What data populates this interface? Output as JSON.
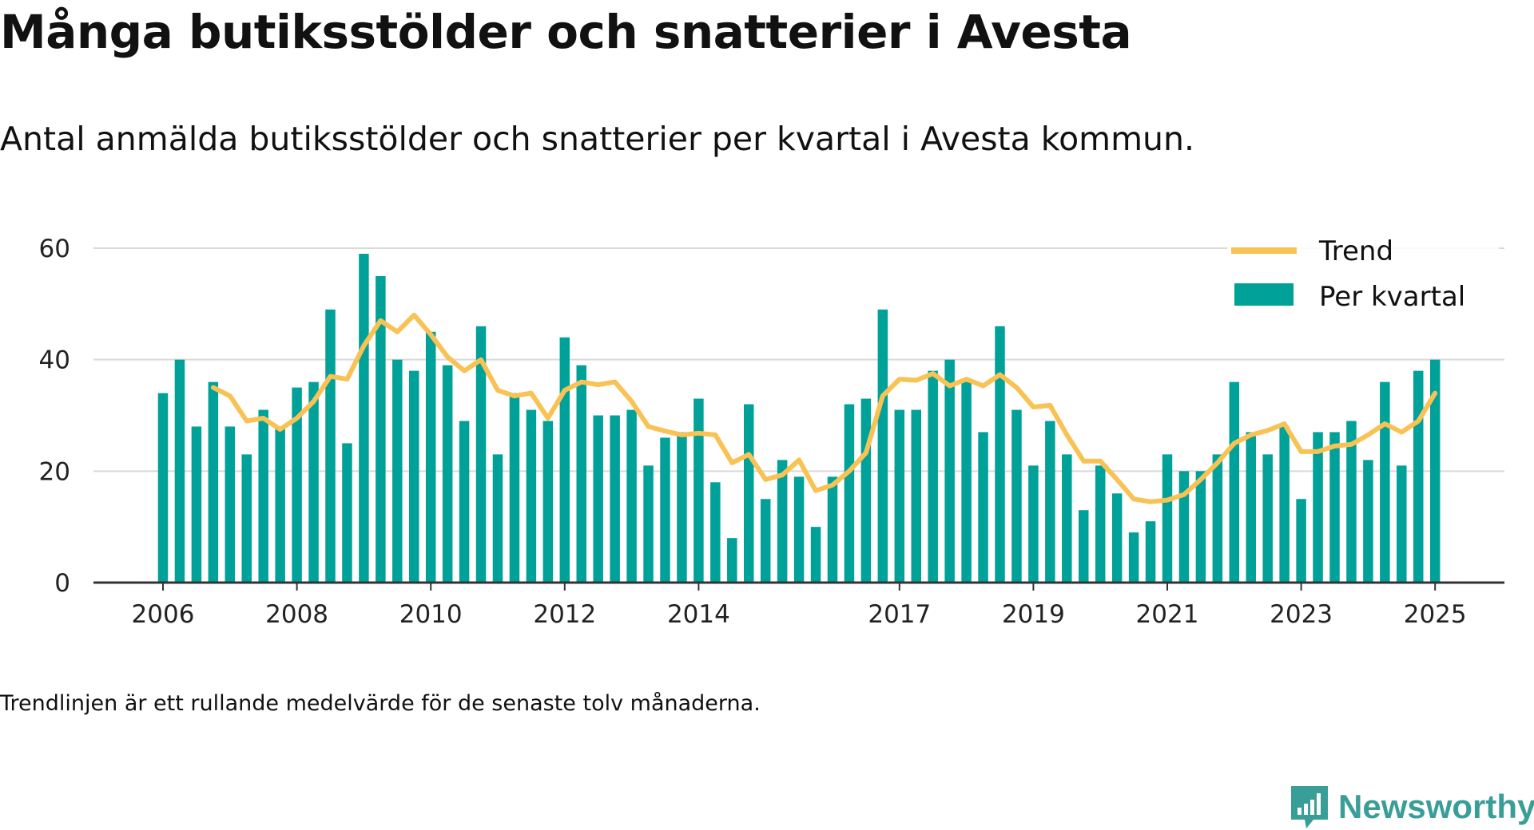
{
  "title": "Många butiksstölder och snatterier i Avesta",
  "subtitle": "Antal anmälda butiksstölder och snatterier per kvartal i Avesta kommun.",
  "footnote": "Trendlinjen är ett rullande medelvärde för de senaste tolv månaderna.",
  "brand": {
    "name": "Newsworthy",
    "icon": "newsworthy-logo-icon",
    "color": "#3a9e98"
  },
  "colors": {
    "bars": "#00a199",
    "trend": "#f8c254",
    "grid": "#d9d9d9",
    "axis": "#333333"
  },
  "chart_data": {
    "type": "bar",
    "title": "Många butiksstölder och snatterier i Avesta",
    "xlabel": "",
    "ylabel": "",
    "ylim": [
      0,
      60
    ],
    "yticks": [
      0,
      20,
      40,
      60
    ],
    "xticks": [
      "2006",
      "2008",
      "2010",
      "2012",
      "2014",
      "2017",
      "2019",
      "2021",
      "2023",
      "2025"
    ],
    "grid": true,
    "legend_position": "top-right",
    "categories": [
      "2006-Q1",
      "2006-Q2",
      "2006-Q3",
      "2006-Q4",
      "2007-Q1",
      "2007-Q2",
      "2007-Q3",
      "2007-Q4",
      "2008-Q1",
      "2008-Q2",
      "2008-Q3",
      "2008-Q4",
      "2009-Q1",
      "2009-Q2",
      "2009-Q3",
      "2009-Q4",
      "2010-Q1",
      "2010-Q2",
      "2010-Q3",
      "2010-Q4",
      "2011-Q1",
      "2011-Q2",
      "2011-Q3",
      "2011-Q4",
      "2012-Q1",
      "2012-Q2",
      "2012-Q3",
      "2012-Q4",
      "2013-Q1",
      "2013-Q2",
      "2013-Q3",
      "2013-Q4",
      "2014-Q1",
      "2014-Q2",
      "2014-Q3",
      "2014-Q4",
      "2015-Q1",
      "2015-Q2",
      "2015-Q3",
      "2015-Q4",
      "2016-Q1",
      "2016-Q2",
      "2016-Q3",
      "2016-Q4",
      "2017-Q1",
      "2017-Q2",
      "2017-Q3",
      "2017-Q4",
      "2018-Q1",
      "2018-Q2",
      "2018-Q3",
      "2018-Q4",
      "2019-Q1",
      "2019-Q2",
      "2019-Q3",
      "2019-Q4",
      "2020-Q1",
      "2020-Q2",
      "2020-Q3",
      "2020-Q4",
      "2021-Q1",
      "2021-Q2",
      "2021-Q3",
      "2021-Q4",
      "2022-Q1",
      "2022-Q2",
      "2022-Q3",
      "2022-Q4",
      "2023-Q1",
      "2023-Q2",
      "2023-Q3",
      "2023-Q4",
      "2024-Q1",
      "2024-Q2",
      "2024-Q3",
      "2024-Q4",
      "2025-Q1"
    ],
    "series": [
      {
        "name": "Per kvartal",
        "type": "bar",
        "values": [
          34,
          40,
          28,
          36,
          28,
          23,
          31,
          28,
          35,
          36,
          49,
          25,
          59,
          55,
          40,
          38,
          45,
          39,
          29,
          46,
          23,
          34,
          31,
          29,
          44,
          39,
          30,
          30,
          31,
          21,
          26,
          27,
          33,
          18,
          8,
          32,
          15,
          22,
          19,
          10,
          19,
          32,
          33,
          49,
          31,
          31,
          38,
          40,
          36,
          27,
          46,
          31,
          21,
          29,
          23,
          13,
          21,
          16,
          9,
          11,
          23,
          20,
          20,
          23,
          36,
          27,
          23,
          28,
          15,
          27,
          27,
          29,
          22,
          36,
          21,
          38,
          40
        ]
      },
      {
        "name": "Trend",
        "type": "line",
        "values": [
          null,
          null,
          null,
          35,
          33.5,
          29,
          29.5,
          27.5,
          29.5,
          32.5,
          37,
          36.5,
          42.5,
          47,
          45,
          48,
          44.5,
          40.5,
          38,
          40,
          34.5,
          33.5,
          34,
          29.5,
          34.5,
          36,
          35.5,
          36,
          32.5,
          28,
          27.2,
          26.5,
          26.8,
          26.5,
          21.5,
          23,
          18.5,
          19.3,
          22,
          16.5,
          17.5,
          20,
          23.3,
          33.5,
          36.5,
          36.3,
          37.5,
          35.3,
          36.5,
          35.3,
          37.3,
          35,
          31.5,
          31.8,
          26.5,
          21.8,
          21.8,
          18.5,
          15,
          14.5,
          14.8,
          15.8,
          18.5,
          21.5,
          25,
          26.5,
          27.3,
          28.5,
          23.5,
          23.5,
          24.5,
          24.8,
          26.5,
          28.5,
          27,
          29,
          34
        ]
      }
    ]
  }
}
